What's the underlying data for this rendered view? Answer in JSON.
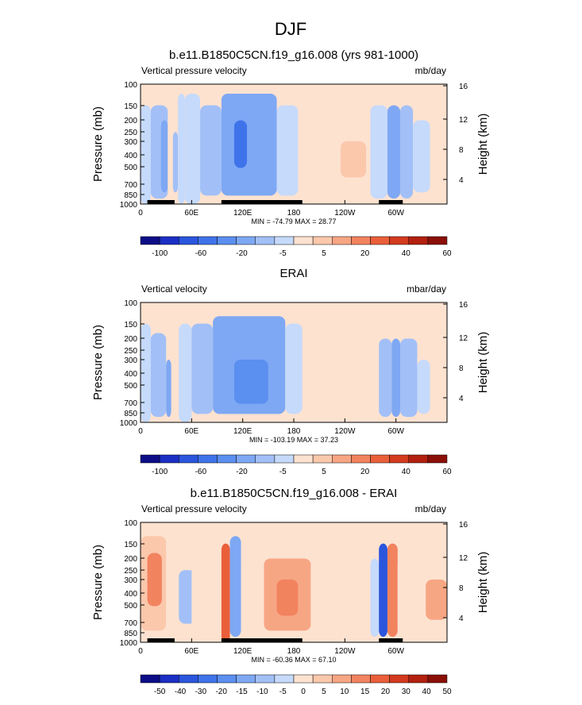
{
  "figure": {
    "title": "DJF"
  },
  "chart_data": [
    {
      "type": "heatmap",
      "title": "b.e11.B1850C5CN.f19_g16.008 (yrs 981-1000)",
      "subtitle_left": "Vertical pressure velocity",
      "subtitle_right": "mb/day",
      "ylabel": "Pressure (mb)",
      "ylabel_right": "Height (km)",
      "x_ticks": [
        "0",
        "60E",
        "120E",
        "180",
        "120W",
        "60W"
      ],
      "y_ticks": [
        "100",
        "150",
        "200",
        "250",
        "300",
        "400",
        "500",
        "700",
        "850",
        "1000"
      ],
      "y_right_ticks": [
        "16",
        "12",
        "8",
        "4"
      ],
      "stats": "MIN = -74.79  MAX = 28.77",
      "colorbar_labels": [
        "-100",
        "-60",
        "-20",
        "-5",
        "5",
        "20",
        "40",
        "60"
      ],
      "colorbar_colors": [
        "#0d0d88",
        "#1b2fc4",
        "#2a55dd",
        "#3f73ea",
        "#5b8ff0",
        "#7ea8f4",
        "#a2c0f7",
        "#c6dafb",
        "#fde2d0",
        "#fbc8ac",
        "#f7a684",
        "#f2835f",
        "#ea5f3a",
        "#d33a1e",
        "#b3200f",
        "#8a0f08"
      ],
      "x_range": [
        0,
        360
      ],
      "y_range_mb": [
        1000,
        100
      ],
      "cells": [
        {
          "x": [
            0,
            12
          ],
          "p": [
            150,
            1000
          ],
          "v": -10
        },
        {
          "x": [
            12,
            32
          ],
          "p": [
            150,
            900
          ],
          "v": -25
        },
        {
          "x": [
            24,
            32
          ],
          "p": [
            200,
            800
          ],
          "v": -40
        },
        {
          "x": [
            32,
            36
          ],
          "p": [
            200,
            800
          ],
          "v": 10
        },
        {
          "x": [
            38,
            44
          ],
          "p": [
            250,
            800
          ],
          "v": -20
        },
        {
          "x": [
            44,
            52
          ],
          "p": [
            120,
            1000
          ],
          "v": -10
        },
        {
          "x": [
            52,
            70
          ],
          "p": [
            120,
            1000
          ],
          "v": -5
        },
        {
          "x": [
            70,
            95
          ],
          "p": [
            150,
            850
          ],
          "v": -20
        },
        {
          "x": [
            95,
            160
          ],
          "p": [
            120,
            850
          ],
          "v": -30
        },
        {
          "x": [
            110,
            125
          ],
          "p": [
            200,
            500
          ],
          "v": -60
        },
        {
          "x": [
            160,
            185
          ],
          "p": [
            150,
            850
          ],
          "v": -10
        },
        {
          "x": [
            200,
            270
          ],
          "p": [
            150,
            850
          ],
          "v": 10
        },
        {
          "x": [
            235,
            265
          ],
          "p": [
            300,
            600
          ],
          "v": 20
        },
        {
          "x": [
            270,
            290
          ],
          "p": [
            150,
            900
          ],
          "v": -5
        },
        {
          "x": [
            290,
            305
          ],
          "p": [
            150,
            900
          ],
          "v": -40
        },
        {
          "x": [
            305,
            320
          ],
          "p": [
            150,
            900
          ],
          "v": -20
        },
        {
          "x": [
            320,
            340
          ],
          "p": [
            200,
            800
          ],
          "v": -10
        },
        {
          "x": [
            340,
            360
          ],
          "p": [
            250,
            600
          ],
          "v": 10
        }
      ],
      "land_segments": [
        [
          8,
          40
        ],
        [
          95,
          190
        ],
        [
          280,
          308
        ]
      ]
    },
    {
      "type": "heatmap",
      "title": "ERAI",
      "subtitle_left": "Vertical velocity",
      "subtitle_right": "mbar/day",
      "ylabel": "Pressure (mb)",
      "ylabel_right": "Height (km)",
      "x_ticks": [
        "0",
        "60E",
        "120E",
        "180",
        "120W",
        "60W"
      ],
      "y_ticks": [
        "100",
        "150",
        "200",
        "250",
        "300",
        "400",
        "500",
        "700",
        "850",
        "1000"
      ],
      "y_right_ticks": [
        "16",
        "12",
        "8",
        "4"
      ],
      "stats": "MIN = -103.19  MAX = 37.23",
      "colorbar_labels": [
        "-100",
        "-60",
        "-20",
        "-5",
        "5",
        "20",
        "40",
        "60"
      ],
      "colorbar_colors": [
        "#0d0d88",
        "#1b2fc4",
        "#2a55dd",
        "#3f73ea",
        "#5b8ff0",
        "#7ea8f4",
        "#a2c0f7",
        "#c6dafb",
        "#fde2d0",
        "#fbc8ac",
        "#f7a684",
        "#f2835f",
        "#ea5f3a",
        "#d33a1e",
        "#b3200f",
        "#8a0f08"
      ],
      "x_range": [
        0,
        360
      ],
      "y_range_mb": [
        1000,
        100
      ],
      "cells": [
        {
          "x": [
            0,
            12
          ],
          "p": [
            150,
            1000
          ],
          "v": -10
        },
        {
          "x": [
            12,
            30
          ],
          "p": [
            180,
            900
          ],
          "v": -25
        },
        {
          "x": [
            30,
            36
          ],
          "p": [
            300,
            900
          ],
          "v": -40
        },
        {
          "x": [
            38,
            45
          ],
          "p": [
            250,
            850
          ],
          "v": 10
        },
        {
          "x": [
            45,
            60
          ],
          "p": [
            150,
            1000
          ],
          "v": -5
        },
        {
          "x": [
            60,
            85
          ],
          "p": [
            150,
            850
          ],
          "v": -20
        },
        {
          "x": [
            85,
            170
          ],
          "p": [
            130,
            850
          ],
          "v": -30
        },
        {
          "x": [
            110,
            150
          ],
          "p": [
            300,
            700
          ],
          "v": -45
        },
        {
          "x": [
            170,
            190
          ],
          "p": [
            150,
            850
          ],
          "v": -10
        },
        {
          "x": [
            200,
            240
          ],
          "p": [
            200,
            900
          ],
          "v": 5
        },
        {
          "x": [
            240,
            270
          ],
          "p": [
            250,
            700
          ],
          "v": 10
        },
        {
          "x": [
            280,
            295
          ],
          "p": [
            200,
            900
          ],
          "v": -20
        },
        {
          "x": [
            295,
            305
          ],
          "p": [
            200,
            900
          ],
          "v": -40
        },
        {
          "x": [
            305,
            325
          ],
          "p": [
            200,
            900
          ],
          "v": -20
        },
        {
          "x": [
            325,
            340
          ],
          "p": [
            300,
            850
          ],
          "v": -10
        },
        {
          "x": [
            340,
            360
          ],
          "p": [
            250,
            700
          ],
          "v": 5
        }
      ],
      "land_segments": []
    },
    {
      "type": "heatmap",
      "title": "b.e11.B1850C5CN.f19_g16.008 - ERAI",
      "subtitle_left": "Vertical pressure velocity",
      "subtitle_right": "mb/day",
      "ylabel": "Pressure (mb)",
      "ylabel_right": "Height (km)",
      "x_ticks": [
        "0",
        "60E",
        "120E",
        "180",
        "120W",
        "60W"
      ],
      "y_ticks": [
        "100",
        "150",
        "200",
        "250",
        "300",
        "400",
        "500",
        "700",
        "850",
        "1000"
      ],
      "y_right_ticks": [
        "16",
        "12",
        "8",
        "4"
      ],
      "stats": "MIN = -60.36  MAX = 67.10",
      "colorbar_labels": [
        "-50",
        "-40",
        "-30",
        "-20",
        "-15",
        "-10",
        "-5",
        "0",
        "5",
        "10",
        "15",
        "20",
        "30",
        "40",
        "50"
      ],
      "colorbar_colors": [
        "#0d0d88",
        "#1b2fc4",
        "#2a55dd",
        "#3f73ea",
        "#5b8ff0",
        "#7ea8f4",
        "#a2c0f7",
        "#c6dafb",
        "#fde2d0",
        "#fbc8ac",
        "#f7a684",
        "#f2835f",
        "#ea5f3a",
        "#d33a1e",
        "#b3200f",
        "#8a0f08"
      ],
      "x_range": [
        0,
        360
      ],
      "y_range_mb": [
        1000,
        100
      ],
      "cells": [
        {
          "x": [
            0,
            30
          ],
          "p": [
            130,
            800
          ],
          "v": 10
        },
        {
          "x": [
            8,
            25
          ],
          "p": [
            180,
            500
          ],
          "v": 25
        },
        {
          "x": [
            30,
            45
          ],
          "p": [
            200,
            800
          ],
          "v": 5
        },
        {
          "x": [
            45,
            65
          ],
          "p": [
            250,
            700
          ],
          "v": -10
        },
        {
          "x": [
            60,
            95
          ],
          "p": [
            200,
            850
          ],
          "v": 5
        },
        {
          "x": [
            95,
            105
          ],
          "p": [
            150,
            1000
          ],
          "v": 30
        },
        {
          "x": [
            105,
            118
          ],
          "p": [
            130,
            900
          ],
          "v": -15
        },
        {
          "x": [
            118,
            145
          ],
          "p": [
            200,
            850
          ],
          "v": 5
        },
        {
          "x": [
            145,
            200
          ],
          "p": [
            200,
            800
          ],
          "v": 15
        },
        {
          "x": [
            160,
            185
          ],
          "p": [
            300,
            600
          ],
          "v": 25
        },
        {
          "x": [
            200,
            270
          ],
          "p": [
            200,
            800
          ],
          "v": 5
        },
        {
          "x": [
            270,
            280
          ],
          "p": [
            200,
            900
          ],
          "v": -5
        },
        {
          "x": [
            280,
            290
          ],
          "p": [
            150,
            900
          ],
          "v": -40
        },
        {
          "x": [
            290,
            302
          ],
          "p": [
            150,
            900
          ],
          "v": 25
        },
        {
          "x": [
            302,
            335
          ],
          "p": [
            200,
            850
          ],
          "v": 5
        },
        {
          "x": [
            335,
            360
          ],
          "p": [
            300,
            650
          ],
          "v": 15
        }
      ],
      "land_segments": [
        [
          8,
          40
        ],
        [
          95,
          190
        ],
        [
          280,
          308
        ]
      ]
    }
  ]
}
